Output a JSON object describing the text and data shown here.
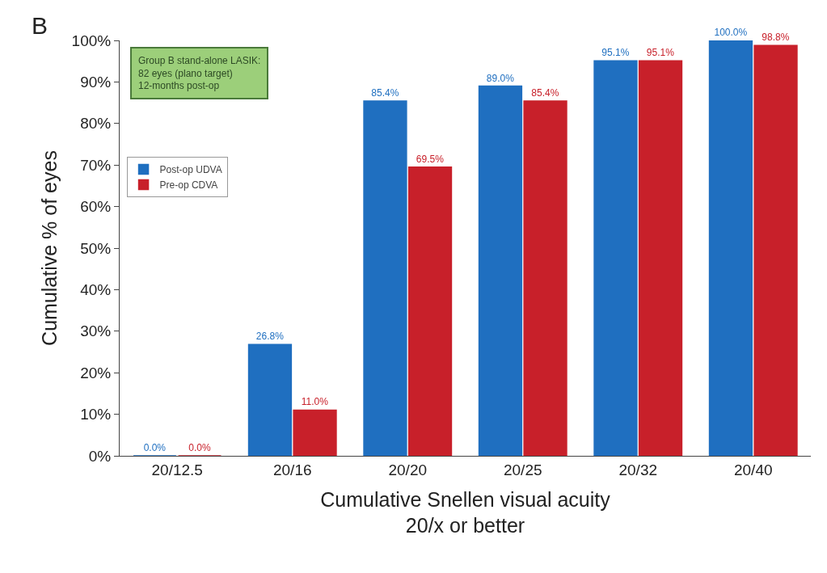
{
  "chart_data": {
    "type": "bar",
    "xlabel": "Cumulative Snellen visual acuity\n20/x or better",
    "ylabel": "Cumulative % of eyes",
    "categories": [
      "20/12.5",
      "20/16",
      "20/20",
      "20/25",
      "20/32",
      "20/40"
    ],
    "series": [
      {
        "name": "Post-op UDVA",
        "color": "#1f6fc0",
        "values": [
          0.0,
          26.8,
          85.4,
          89.0,
          95.1,
          100.0
        ],
        "value_labels": [
          "0.0%",
          "26.8%",
          "85.4%",
          "89.0%",
          "95.1%",
          "100.0%"
        ]
      },
      {
        "name": "Pre-op CDVA",
        "color": "#c8202a",
        "values": [
          0.0,
          11.0,
          69.5,
          85.4,
          95.1,
          98.8
        ],
        "value_labels": [
          "0.0%",
          "11.0%",
          "69.5%",
          "85.4%",
          "95.1%",
          "98.8%"
        ]
      }
    ],
    "ylim": [
      0,
      100
    ],
    "yticks": [
      {
        "value": 0,
        "label": "0%"
      },
      {
        "value": 10,
        "label": "10%"
      },
      {
        "value": 20,
        "label": "20%"
      },
      {
        "value": 30,
        "label": "30%"
      },
      {
        "value": 40,
        "label": "40%"
      },
      {
        "value": 50,
        "label": "50%"
      },
      {
        "value": 60,
        "label": "60%"
      },
      {
        "value": 70,
        "label": "70%"
      },
      {
        "value": 80,
        "label": "80%"
      },
      {
        "value": 90,
        "label": "90%"
      },
      {
        "value": 100,
        "label": "100%"
      }
    ],
    "grid": false,
    "legend": "top left",
    "annotations": [
      "B",
      "Group B stand-alone LASIK:\n82 eyes (plano target)\n12-months post-op"
    ]
  }
}
